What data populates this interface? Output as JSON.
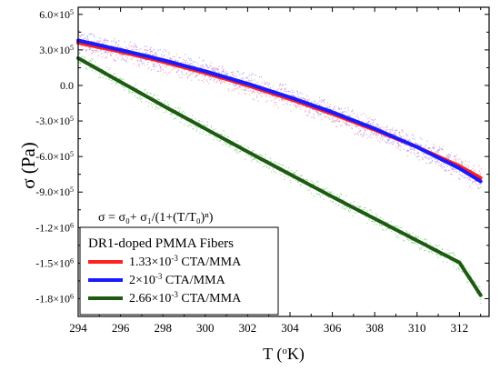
{
  "chart_data": {
    "type": "scatter",
    "xlabel": {
      "base": "T (",
      "sup": "o",
      "rest": "K)"
    },
    "ylabel": "σ (Pa)",
    "xlim": [
      294,
      313.4
    ],
    "ylim": [
      -1950000.0,
      660000.0
    ],
    "grid": false,
    "x_ticks": [
      294,
      296,
      298,
      300,
      302,
      304,
      306,
      308,
      310,
      312
    ],
    "y_ticks": [
      {
        "value": 600000,
        "mant": "6.0×10",
        "exp": "5"
      },
      {
        "value": 300000,
        "mant": "3.0×10",
        "exp": "5"
      },
      {
        "value": 0,
        "mant": "0.0",
        "exp": ""
      },
      {
        "value": -300000,
        "mant": "-3.0×10",
        "exp": "5"
      },
      {
        "value": -600000,
        "mant": "-6.0×10",
        "exp": "5"
      },
      {
        "value": -900000,
        "mant": "-9.0×10",
        "exp": "5"
      },
      {
        "value": -1200000,
        "mant": "-1.2×10",
        "exp": "6"
      },
      {
        "value": -1500000,
        "mant": "-1.5×10",
        "exp": "6"
      },
      {
        "value": -1800000,
        "mant": "-1.8×10",
        "exp": "6"
      }
    ],
    "annotation": {
      "formula": "σ = σ₀+ σ₁/(1+(T/T₀)ⁿ)"
    },
    "legend": {
      "title": "DR1-doped PMMA Fibers",
      "placement": "bottom-left",
      "entries": [
        {
          "mant": "1.33×10",
          "exp": "-3",
          "suffix": " CTA/MMA",
          "color": "#ff2020"
        },
        {
          "mant": "2×10",
          "exp": "-3",
          "suffix": " CTA/MMA",
          "color": "#1a1aff"
        },
        {
          "mant": "2.66×10",
          "exp": "-3",
          "suffix": " CTA/MMA",
          "color": "#1e5a12"
        }
      ]
    },
    "series": [
      {
        "name": "1.33×10-3 CTA/MMA",
        "color": "#ff2020",
        "scatter_color": "#ff7070",
        "spread": 110000,
        "x": [
          294,
          296,
          298,
          300,
          302,
          304,
          306,
          308,
          310,
          312,
          313
        ],
        "y": [
          360000,
          285000,
          200000,
          105000,
          0,
          -115000,
          -240000,
          -375000,
          -520000,
          -680000,
          -780000
        ]
      },
      {
        "name": "2×10-3 CTA/MMA",
        "color": "#1a1aff",
        "scatter_color": "#6a6aff",
        "spread": 110000,
        "x": [
          294,
          296,
          298,
          300,
          302,
          304,
          306,
          308,
          310,
          312,
          313
        ],
        "y": [
          380000,
          300000,
          215000,
          120000,
          15000,
          -100000,
          -225000,
          -365000,
          -520000,
          -700000,
          -810000
        ]
      },
      {
        "name": "2.66×10-3 CTA/MMA",
        "color": "#1e5a12",
        "scatter_color": "#4fbf4f",
        "spread": 75000,
        "x": [
          294,
          296,
          298,
          300,
          302,
          304,
          306,
          308,
          310,
          312,
          313
        ],
        "y": [
          230000,
          30000,
          -170000,
          -365000,
          -560000,
          -750000,
          -940000,
          -1125000,
          -1310000,
          -1495000,
          -1770000
        ]
      }
    ]
  }
}
